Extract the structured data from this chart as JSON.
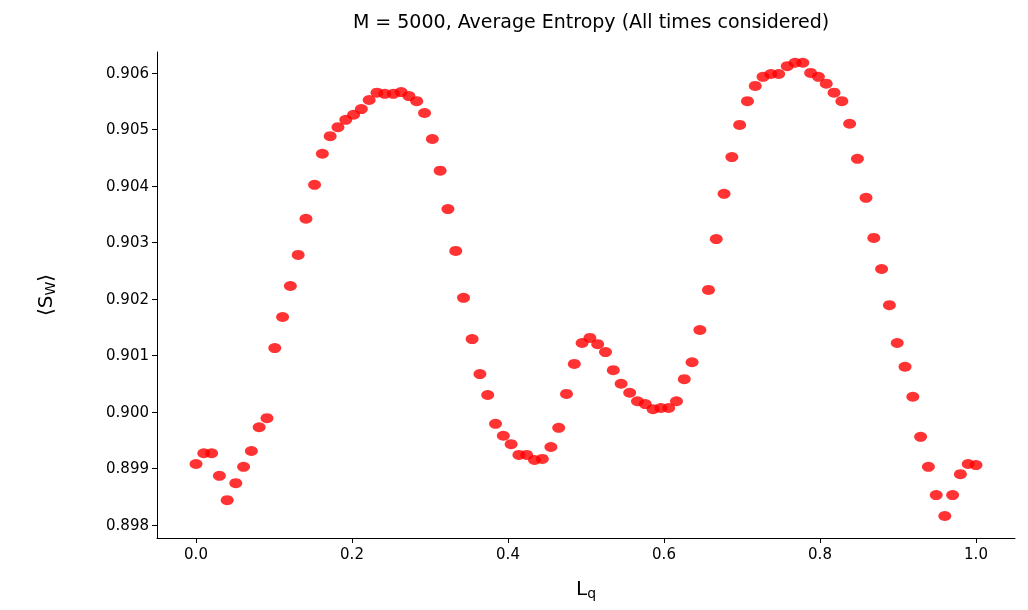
{
  "chart_data": {
    "type": "scatter",
    "title": "M = 5000, Average Entropy (All times considered)",
    "xlabel": "L$_{q}$",
    "ylabel": "⟨S$_{W}$⟩",
    "x": [
      0,
      0.01,
      0.02,
      0.03,
      0.04,
      0.051,
      0.061,
      0.071,
      0.081,
      0.091,
      0.101,
      0.111,
      0.121,
      0.131,
      0.141,
      0.152,
      0.162,
      0.172,
      0.182,
      0.192,
      0.202,
      0.212,
      0.222,
      0.232,
      0.242,
      0.253,
      0.263,
      0.273,
      0.283,
      0.293,
      0.303,
      0.313,
      0.323,
      0.333,
      0.343,
      0.354,
      0.364,
      0.374,
      0.384,
      0.394,
      0.404,
      0.414,
      0.424,
      0.434,
      0.444,
      0.455,
      0.465,
      0.475,
      0.485,
      0.495,
      0.505,
      0.515,
      0.525,
      0.535,
      0.545,
      0.556,
      0.566,
      0.576,
      0.586,
      0.596,
      0.606,
      0.616,
      0.626,
      0.636,
      0.646,
      0.657,
      0.667,
      0.677,
      0.687,
      0.697,
      0.707,
      0.717,
      0.727,
      0.737,
      0.747,
      0.758,
      0.768,
      0.778,
      0.788,
      0.798,
      0.808,
      0.818,
      0.828,
      0.838,
      0.848,
      0.859,
      0.869,
      0.879,
      0.889,
      0.899,
      0.909,
      0.919,
      0.929,
      0.939,
      0.949,
      0.96,
      0.97,
      0.98,
      0.99,
      1.0
    ],
    "series": [
      {
        "color": "#ff0000",
        "values": [
          0.89908,
          0.89927,
          0.89927,
          0.89887,
          0.89844,
          0.89874,
          0.89903,
          0.89931,
          0.89973,
          0.89989,
          0.90113,
          0.90168,
          0.90223,
          0.90278,
          0.90342,
          0.90402,
          0.90457,
          0.90488,
          0.90504,
          0.90517,
          0.90526,
          0.90536,
          0.90552,
          0.90565,
          0.90563,
          0.90563,
          0.90566,
          0.90559,
          0.9055,
          0.90529,
          0.90483,
          0.90427,
          0.90359,
          0.90285,
          0.90202,
          0.90129,
          0.90067,
          0.9003,
          0.89979,
          0.89958,
          0.89943,
          0.89924,
          0.89924,
          0.89915,
          0.89917,
          0.89938,
          0.89972,
          0.90032,
          0.90085,
          0.90122,
          0.90131,
          0.9012,
          0.90106,
          0.90074,
          0.9005,
          0.90034,
          0.90019,
          0.90014,
          0.90005,
          0.90007,
          0.90007,
          0.90019,
          0.90058,
          0.90088,
          0.90145,
          0.90216,
          0.90306,
          0.90386,
          0.90451,
          0.90508,
          0.9055,
          0.90577,
          0.90593,
          0.90598,
          0.90598,
          0.90612,
          0.90618,
          0.90618,
          0.906,
          0.90593,
          0.90581,
          0.90565,
          0.9055,
          0.9051,
          0.90448,
          0.90379,
          0.90308,
          0.90253,
          0.90189,
          0.90122,
          0.9008,
          0.90027,
          0.89956,
          0.89903,
          0.89853,
          0.89816,
          0.89853,
          0.8989,
          0.89908,
          0.89906
        ]
      }
    ],
    "xlim": [
      -0.05,
      1.05
    ],
    "xticks": [
      {
        "value": 0,
        "label": "0.0"
      },
      {
        "value": 0.2,
        "label": "0.2"
      },
      {
        "value": 0.4,
        "label": "0.4"
      },
      {
        "value": 0.6,
        "label": "0.6"
      },
      {
        "value": 0.8,
        "label": "0.8"
      },
      {
        "value": 1,
        "label": "1.0"
      }
    ],
    "ylim": [
      0.89777,
      0.90637
    ],
    "yticks": [
      {
        "value": 0.898,
        "label": "0.898"
      },
      {
        "value": 0.899,
        "label": "0.899"
      },
      {
        "value": 0.9,
        "label": "0.900"
      },
      {
        "value": 0.901,
        "label": "0.901"
      },
      {
        "value": 0.902,
        "label": "0.902"
      },
      {
        "value": 0.903,
        "label": "0.903"
      },
      {
        "value": 0.904,
        "label": "0.904"
      },
      {
        "value": 0.905,
        "label": "0.905"
      },
      {
        "value": 0.906,
        "label": "0.906"
      }
    ],
    "marker": "circle",
    "grid": false
  }
}
